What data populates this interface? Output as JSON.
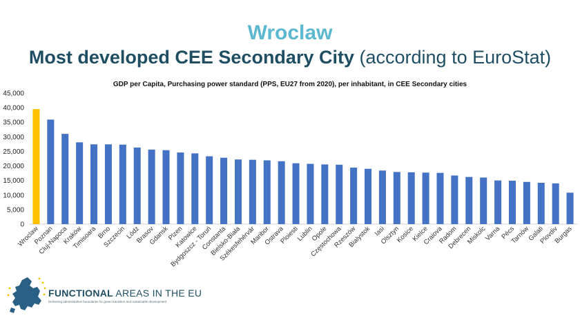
{
  "header": {
    "title": "Wroclaw",
    "subtitle_bold": "Most developed CEE Secondary City",
    "subtitle_normal": "(according to EuroStat)"
  },
  "colors": {
    "title": "#5bb8cf",
    "subtitle": "#1f4e63",
    "bar": "#4472c4",
    "highlight": "#ffc000"
  },
  "chart_data": {
    "type": "bar",
    "title": "GDP per Capita, Purchasing power standard (PPS, EU27 from 2020), per inhabitant, in CEE Secondary cities",
    "ylim": [
      0,
      45000
    ],
    "yticks": [
      "0",
      "5,000",
      "10,000",
      "15,000",
      "20,000",
      "25,000",
      "30,000",
      "35,000",
      "40,000",
      "45,000"
    ],
    "grid": false,
    "legend": "none",
    "highlight_category": "Wroclaw",
    "categories": [
      "Wroclaw",
      "Poznan",
      "Cluj-Napoca",
      "Kraków",
      "Timisoara",
      "Brno",
      "Szczecin",
      "Lódz",
      "Brasov",
      "Gdansk",
      "Plzen",
      "Katowice",
      "Bydgoszcz - Toruń",
      "Constanta",
      "Bielsko-Biała",
      "Székesfehérvár",
      "Maribor",
      "Ostrava",
      "Ploiesti",
      "Lublin",
      "Opole",
      "Częstochowa",
      "Rzeszów",
      "Bialystok",
      "Iasi",
      "Olsztyn",
      "Kosice",
      "Kielce",
      "Craiova",
      "Radom",
      "Debrecen",
      "Miskolc",
      "Varna",
      "Pécs",
      "Tarnów",
      "Galati",
      "Plovdiv",
      "Burgas"
    ],
    "values": [
      39500,
      35900,
      31000,
      28100,
      27400,
      27400,
      27300,
      26300,
      25600,
      25400,
      24600,
      24300,
      23300,
      22800,
      22200,
      22100,
      21900,
      21600,
      20900,
      20700,
      20500,
      20400,
      19400,
      19000,
      18400,
      17900,
      17800,
      17700,
      17600,
      16700,
      16200,
      16000,
      15000,
      14900,
      14500,
      14200,
      14000,
      10800
    ]
  },
  "footer": {
    "brand_bold": "FUNCTIONAL",
    "brand_rest": "AREAS IN THE EU",
    "tagline": "Delivering administrative boundaries for green transition and sustainable development",
    "logo_icon": "eu-map-stars-icon"
  }
}
